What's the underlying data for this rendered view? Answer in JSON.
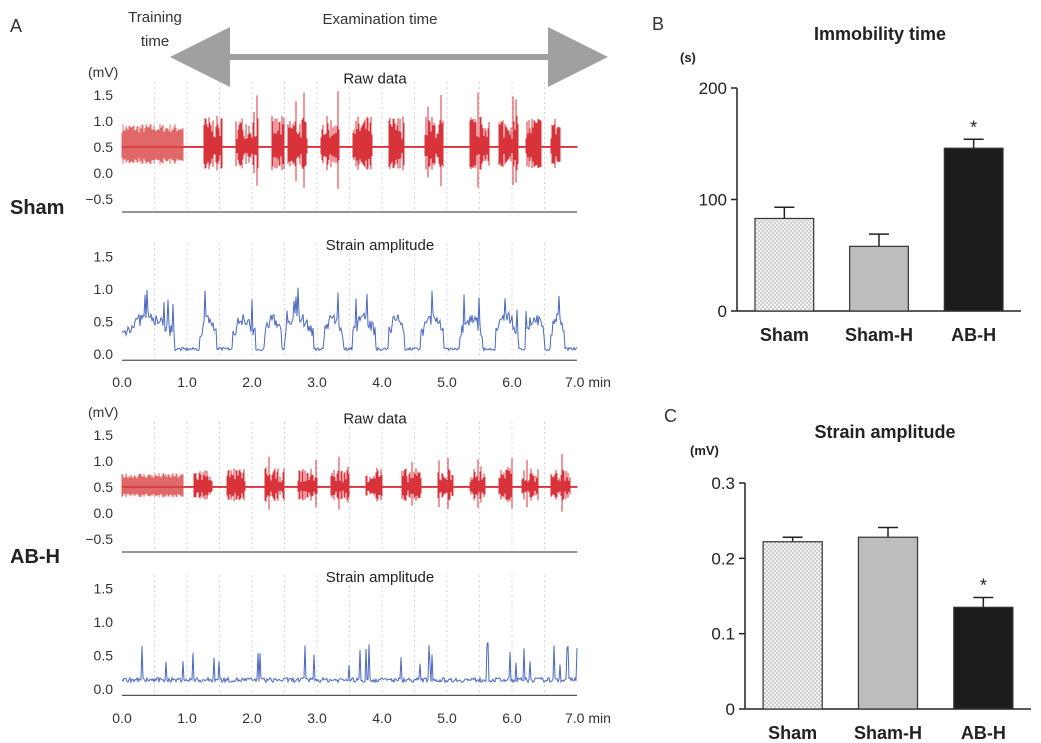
{
  "colors": {
    "raw": "#d8323a",
    "raw_training": "#e06868",
    "strain": "#4a68c2",
    "arrow": "#a0a0a0",
    "bar_sham": "#eeeeee",
    "bar_shamh": "#bdbdbd",
    "bar_abh": "#1c1c1c",
    "grid": "#c8c8c8"
  },
  "panel_a": {
    "letter": "A",
    "training_label_1": "Training",
    "training_label_2": "time",
    "exam_label": "Examination time",
    "unit_mv": "(mV)",
    "raw_title": "Raw data",
    "strain_title": "Strain amplitude",
    "raw_yticks": [
      "1.5",
      "1.0",
      "0.5",
      "0.0",
      "−0.5"
    ],
    "strain_yticks": [
      "1.5",
      "1.0",
      "0.5",
      "0.0"
    ],
    "xticks": [
      "0.0",
      "1.0",
      "2.0",
      "3.0",
      "4.0",
      "5.0",
      "6.0",
      "7.0 min"
    ],
    "groups": [
      {
        "label": "Sham",
        "raw_burst_level": 0.5,
        "strain_peak": 0.85
      },
      {
        "label": "AB-H",
        "raw_burst_level": 0.3,
        "strain_peak": 0.35
      }
    ]
  },
  "panel_b": {
    "letter": "B",
    "title": "Immobility time",
    "unit": "(s)"
  },
  "panel_c": {
    "letter": "C",
    "title": "Strain amplitude",
    "unit": "(mV)"
  },
  "chart_data": [
    {
      "type": "bar",
      "title": "Immobility time",
      "ylabel": "(s)",
      "categories": [
        "Sham",
        "Sham-H",
        "AB-H"
      ],
      "values": [
        83,
        58,
        146
      ],
      "errors": [
        10,
        11,
        8
      ],
      "significant": [
        "",
        "",
        "*"
      ],
      "ylim": [
        0,
        200
      ],
      "yticks": [
        "0",
        "100",
        "200"
      ]
    },
    {
      "type": "bar",
      "title": "Strain amplitude",
      "ylabel": "(mV)",
      "categories": [
        "Sham",
        "Sham-H",
        "AB-H"
      ],
      "values": [
        0.222,
        0.228,
        0.135
      ],
      "errors": [
        0.006,
        0.013,
        0.013
      ],
      "significant": [
        "",
        "",
        "*"
      ],
      "ylim": [
        0,
        0.3
      ],
      "yticks": [
        "0",
        "0.1",
        "0.2",
        "0.3"
      ]
    }
  ]
}
